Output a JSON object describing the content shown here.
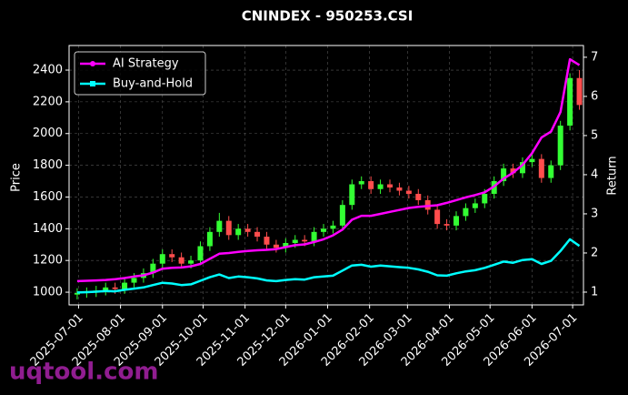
{
  "chart_data": {
    "type": "candlestick",
    "title": "CNINDEX - 950253.CSI",
    "ylabel": "Price",
    "y2label": "Return",
    "watermark": "uqtool.com",
    "x": [
      "2025-06-30",
      "2025-07-07",
      "2025-07-14",
      "2025-07-21",
      "2025-07-28",
      "2025-08-04",
      "2025-08-11",
      "2025-08-18",
      "2025-08-25",
      "2025-09-01",
      "2025-09-08",
      "2025-09-15",
      "2025-09-22",
      "2025-09-29",
      "2025-10-06",
      "2025-10-13",
      "2025-10-20",
      "2025-10-27",
      "2025-11-03",
      "2025-11-10",
      "2025-11-17",
      "2025-11-24",
      "2025-12-01",
      "2025-12-08",
      "2025-12-15",
      "2025-12-22",
      "2025-12-29",
      "2026-01-05",
      "2026-01-12",
      "2026-01-19",
      "2026-01-26",
      "2026-02-02",
      "2026-02-09",
      "2026-02-16",
      "2026-02-23",
      "2026-03-02",
      "2026-03-09",
      "2026-03-16",
      "2026-03-23",
      "2026-03-30",
      "2026-04-06",
      "2026-04-13",
      "2026-04-20",
      "2026-04-27",
      "2026-05-04",
      "2026-05-11",
      "2026-05-18",
      "2026-05-25",
      "2026-06-01",
      "2026-06-08",
      "2026-06-15",
      "2026-06-22",
      "2026-06-29",
      "2026-07-06"
    ],
    "open": [
      985,
      995,
      1000,
      1010,
      1030,
      1020,
      1060,
      1090,
      1120,
      1180,
      1240,
      1220,
      1180,
      1200,
      1290,
      1380,
      1450,
      1360,
      1400,
      1380,
      1350,
      1300,
      1280,
      1310,
      1330,
      1320,
      1380,
      1400,
      1420,
      1550,
      1680,
      1700,
      1650,
      1680,
      1660,
      1640,
      1620,
      1580,
      1520,
      1430,
      1420,
      1480,
      1530,
      1560,
      1620,
      1700,
      1780,
      1750,
      1820,
      1840,
      1720,
      1800,
      2050,
      2350
    ],
    "high": [
      1025,
      1030,
      1040,
      1060,
      1060,
      1090,
      1120,
      1150,
      1210,
      1270,
      1270,
      1250,
      1230,
      1320,
      1410,
      1500,
      1480,
      1430,
      1430,
      1410,
      1380,
      1330,
      1340,
      1360,
      1360,
      1410,
      1430,
      1450,
      1580,
      1710,
      1730,
      1730,
      1710,
      1710,
      1690,
      1670,
      1650,
      1610,
      1550,
      1460,
      1510,
      1560,
      1590,
      1650,
      1730,
      1810,
      1810,
      1850,
      1870,
      1870,
      1830,
      2080,
      2380,
      2400
    ],
    "low": [
      955,
      965,
      970,
      980,
      990,
      990,
      1030,
      1060,
      1090,
      1150,
      1190,
      1150,
      1150,
      1170,
      1260,
      1350,
      1330,
      1330,
      1350,
      1320,
      1270,
      1250,
      1250,
      1280,
      1290,
      1290,
      1350,
      1370,
      1390,
      1520,
      1650,
      1620,
      1620,
      1630,
      1610,
      1590,
      1550,
      1490,
      1400,
      1390,
      1390,
      1450,
      1500,
      1530,
      1590,
      1670,
      1720,
      1720,
      1790,
      1690,
      1690,
      1770,
      2020,
      2150
    ],
    "close": [
      995,
      1000,
      1010,
      1030,
      1020,
      1060,
      1090,
      1120,
      1180,
      1240,
      1220,
      1180,
      1200,
      1290,
      1380,
      1450,
      1360,
      1400,
      1380,
      1350,
      1300,
      1280,
      1310,
      1330,
      1320,
      1380,
      1400,
      1420,
      1550,
      1680,
      1700,
      1650,
      1680,
      1660,
      1640,
      1620,
      1580,
      1520,
      1430,
      1420,
      1480,
      1530,
      1560,
      1620,
      1700,
      1780,
      1750,
      1820,
      1840,
      1720,
      1800,
      2050,
      2350,
      2180
    ],
    "up_color": "#33ff33",
    "down_color": "#ff4d4d",
    "series": [
      {
        "name": "AI Strategy",
        "color": "#ff00ff",
        "marker": "circle",
        "axis": "y2",
        "values": [
          1.28,
          1.29,
          1.3,
          1.31,
          1.33,
          1.36,
          1.4,
          1.43,
          1.5,
          1.6,
          1.62,
          1.63,
          1.66,
          1.72,
          1.85,
          1.98,
          2.0,
          2.03,
          2.05,
          2.07,
          2.08,
          2.1,
          2.15,
          2.2,
          2.22,
          2.28,
          2.35,
          2.45,
          2.6,
          2.85,
          2.95,
          2.95,
          3.0,
          3.05,
          3.1,
          3.15,
          3.18,
          3.2,
          3.22,
          3.28,
          3.35,
          3.42,
          3.48,
          3.55,
          3.7,
          3.9,
          4.05,
          4.25,
          4.55,
          4.95,
          5.1,
          5.6,
          6.95,
          6.8
        ]
      },
      {
        "name": "Buy-and-Hold",
        "color": "#00ffff",
        "marker": "square",
        "axis": "y2",
        "values": [
          0.99,
          1.0,
          1.01,
          1.03,
          1.02,
          1.06,
          1.09,
          1.12,
          1.18,
          1.24,
          1.22,
          1.18,
          1.2,
          1.29,
          1.38,
          1.45,
          1.36,
          1.4,
          1.38,
          1.35,
          1.3,
          1.28,
          1.31,
          1.33,
          1.32,
          1.38,
          1.4,
          1.42,
          1.55,
          1.68,
          1.7,
          1.65,
          1.68,
          1.66,
          1.64,
          1.62,
          1.58,
          1.52,
          1.43,
          1.42,
          1.48,
          1.53,
          1.56,
          1.62,
          1.7,
          1.78,
          1.75,
          1.82,
          1.84,
          1.72,
          1.8,
          2.05,
          2.35,
          2.18
        ]
      }
    ],
    "xlim": [
      "2025-06-24",
      "2026-07-09"
    ],
    "xticks": [
      "2025-07-01",
      "2025-08-01",
      "2025-09-01",
      "2025-10-01",
      "2025-11-01",
      "2025-12-01",
      "2026-01-01",
      "2026-02-01",
      "2026-03-01",
      "2026-04-01",
      "2026-05-01",
      "2026-06-01",
      "2026-07-01"
    ],
    "ylim": [
      920,
      2555
    ],
    "yticks": [
      1000,
      1200,
      1400,
      1600,
      1800,
      2000,
      2200,
      2400
    ],
    "y2lim": [
      0.674,
      7.3
    ],
    "y2ticks": [
      1,
      2,
      3,
      4,
      5,
      6,
      7
    ],
    "grid": true,
    "legend": "upper left"
  }
}
